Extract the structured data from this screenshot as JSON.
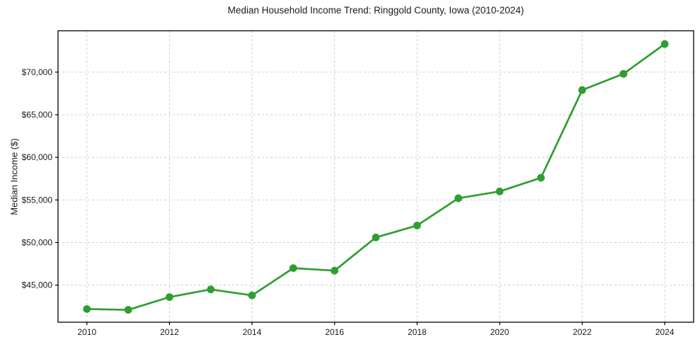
{
  "figure": {
    "background": "#ffffff"
  },
  "chart_data": {
    "type": "line",
    "title": "Median Household Income Trend: Ringgold County, Iowa (2010-2024)",
    "xlabel": "",
    "ylabel": "Median Income ($)",
    "x": [
      2010,
      2011,
      2012,
      2013,
      2014,
      2015,
      2016,
      2017,
      2018,
      2019,
      2020,
      2021,
      2022,
      2023,
      2024
    ],
    "series": [
      {
        "name": "Median household income",
        "color": "#2e9e32",
        "values": [
          42200,
          42100,
          43600,
          44500,
          43800,
          47000,
          46700,
          50600,
          52000,
          55200,
          56000,
          57600,
          67900,
          69800,
          73300
        ]
      }
    ],
    "xticks": [
      2010,
      2012,
      2014,
      2016,
      2018,
      2020,
      2022,
      2024
    ],
    "xtick_labels": [
      "2010",
      "2012",
      "2014",
      "2016",
      "2018",
      "2020",
      "2022",
      "2024"
    ],
    "yticks": [
      45000,
      50000,
      55000,
      60000,
      65000,
      70000
    ],
    "ytick_labels": [
      "$45,000",
      "$50,000",
      "$55,000",
      "$60,000",
      "$65,000",
      "$70,000"
    ],
    "xlim": [
      2009.3,
      2024.7
    ],
    "ylim": [
      40650,
      74850
    ],
    "grid": true,
    "grid_color": "#cccccc",
    "axis_color": "#000000",
    "text_color": "#1a1a1a",
    "marker": "circle",
    "marker_radius": 5.4,
    "line_width": 2.7,
    "legend": "none"
  }
}
